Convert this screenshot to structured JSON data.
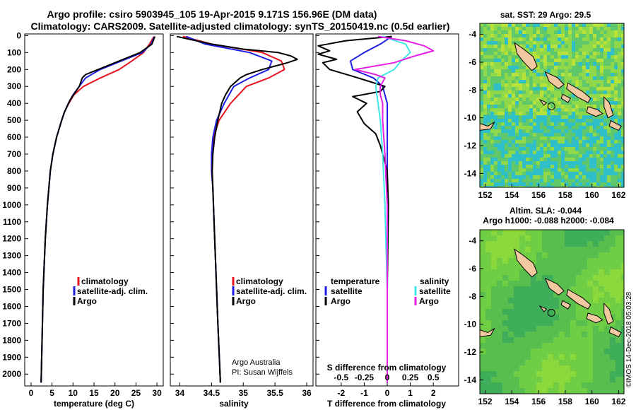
{
  "header": {
    "line1": "Argo profile: csiro 5903945_105 19-Apr-2015 9.171S 156.96E (DM data)",
    "line2": "Climatology: CARS2009. Satellite-adjusted climatology: synTS_20150419.nc (0.5d earlier)"
  },
  "credit": {
    "line1": "Argo Australia",
    "line2": "PI: Susan Wijffels",
    "imos": "©IMOS 14-Dec-2018 05:03:28"
  },
  "colors": {
    "climatology": "#e8141e",
    "satellite": "#1e1ee6",
    "argo": "#000000",
    "sal_sat": "#3fe6e6",
    "sal_argo": "#e61ee6",
    "land": "#f2c8a0"
  },
  "depth_axis": {
    "ticks": [
      0,
      100,
      200,
      300,
      400,
      500,
      600,
      700,
      800,
      900,
      1000,
      1100,
      1200,
      1300,
      1400,
      1500,
      1600,
      1700,
      1800,
      1900,
      2000
    ],
    "range": [
      -10,
      2070
    ]
  },
  "chart_data": [
    {
      "type": "line",
      "id": "temperature",
      "xlabel": "temperature (deg C)",
      "xlim": [
        -1.5,
        31.5
      ],
      "xticks": [
        0,
        5,
        10,
        15,
        20,
        25,
        30
      ],
      "legend": [
        "climatology",
        "satellite-adj. clim.",
        "Argo"
      ],
      "series": [
        {
          "name": "climatology",
          "depth": [
            5,
            50,
            100,
            150,
            200,
            250,
            300,
            350,
            400,
            450,
            500,
            600,
            700,
            800,
            1000,
            1200,
            1500,
            2050
          ],
          "values": [
            29.3,
            28.2,
            26.8,
            24.0,
            21.0,
            16.5,
            12.5,
            10.2,
            9.0,
            8.0,
            7.3,
            6.1,
            5.2,
            4.6,
            3.9,
            3.4,
            2.9,
            2.4
          ]
        },
        {
          "name": "satellite-adj. clim.",
          "depth": [
            5,
            50,
            100,
            150,
            200,
            250,
            300,
            350,
            400,
            450,
            500,
            600,
            700,
            800,
            1000,
            1200,
            1500,
            2050
          ],
          "values": [
            29.4,
            28.6,
            26.5,
            21.5,
            16.5,
            13.0,
            11.5,
            10.0,
            8.9,
            8.0,
            7.3,
            6.1,
            5.2,
            4.6,
            3.9,
            3.4,
            2.9,
            2.4
          ]
        },
        {
          "name": "Argo",
          "depth": [
            5,
            50,
            100,
            150,
            200,
            230,
            250,
            300,
            340,
            380,
            450,
            500,
            600,
            700,
            800,
            1000,
            1200,
            1500,
            2050
          ],
          "values": [
            29.5,
            28.8,
            26.0,
            21.0,
            16.0,
            13.0,
            12.2,
            11.5,
            10.4,
            9.3,
            8.0,
            7.3,
            6.1,
            5.2,
            4.6,
            3.9,
            3.4,
            2.9,
            2.4
          ]
        }
      ]
    },
    {
      "type": "line",
      "id": "salinity",
      "xlabel": "salinity",
      "xlim": [
        33.85,
        36.1
      ],
      "xticks": [
        34,
        34.5,
        35,
        35.5,
        36
      ],
      "legend": [
        "climatology",
        "satellite-adj. clim.",
        "Argo"
      ],
      "series": [
        {
          "name": "climatology",
          "depth": [
            5,
            50,
            100,
            150,
            200,
            250,
            300,
            400,
            500,
            600,
            700,
            800,
            900,
            1100,
            1400,
            1700,
            2050
          ],
          "values": [
            34.05,
            34.5,
            35.3,
            35.6,
            35.65,
            35.4,
            35.05,
            34.8,
            34.62,
            34.53,
            34.5,
            34.5,
            34.52,
            34.54,
            34.57,
            34.6,
            34.64
          ]
        },
        {
          "name": "satellite-adj. clim.",
          "depth": [
            5,
            50,
            100,
            150,
            200,
            250,
            300,
            400,
            500,
            600,
            700,
            800,
            900,
            1100,
            1400,
            1700,
            2050
          ],
          "values": [
            34.1,
            34.4,
            35.1,
            35.45,
            35.4,
            35.1,
            34.85,
            34.7,
            34.58,
            34.52,
            34.5,
            34.5,
            34.52,
            34.54,
            34.57,
            34.6,
            34.64
          ]
        },
        {
          "name": "Argo",
          "depth": [
            5,
            50,
            80,
            100,
            120,
            140,
            160,
            180,
            200,
            230,
            250,
            300,
            350,
            400,
            500,
            600,
            700,
            800,
            900,
            1100,
            1400,
            1700,
            2050
          ],
          "values": [
            33.95,
            34.5,
            35.0,
            35.55,
            35.75,
            35.85,
            35.7,
            35.5,
            35.3,
            35.05,
            34.95,
            34.8,
            34.72,
            34.66,
            34.6,
            34.55,
            34.52,
            34.51,
            34.52,
            34.54,
            34.57,
            34.6,
            34.64
          ]
        }
      ]
    },
    {
      "type": "line",
      "id": "difference",
      "xlabel": "T difference from climatology",
      "xlabel2": "S difference from climatology",
      "xlim": [
        -3.1,
        3.1
      ],
      "xticks": [
        -2,
        -1,
        0,
        1,
        2
      ],
      "xticks2": [
        "-0.5",
        "-0.25",
        "0",
        "0.25",
        "0.5"
      ],
      "xticks2_pos": [
        -2,
        -1,
        0,
        1,
        2
      ],
      "legend_left_title": "temperature",
      "legend_right_title": "salinity",
      "legend_left": [
        "satellite",
        "Argo"
      ],
      "legend_right": [
        "satellite",
        "Argo"
      ],
      "series": [
        {
          "name": "temperature satellite",
          "depth": [
            5,
            50,
            100,
            150,
            200,
            250,
            300,
            350,
            400,
            500,
            700,
            1000,
            1500,
            2050
          ],
          "values": [
            0.2,
            -0.3,
            -1.0,
            -1.6,
            -1.5,
            -0.6,
            -0.2,
            -0.1,
            0.0,
            0.0,
            0.0,
            0.0,
            0.0,
            0.0
          ]
        },
        {
          "name": "temperature Argo",
          "depth": [
            5,
            30,
            60,
            90,
            110,
            140,
            160,
            200,
            240,
            270,
            300,
            330,
            360,
            400,
            450,
            520,
            580,
            650,
            700,
            800,
            1000,
            1500,
            2050
          ],
          "values": [
            0.2,
            -1.8,
            -3.0,
            -2.5,
            -3.0,
            -2.2,
            -2.8,
            -2.5,
            -1.5,
            -0.8,
            -0.1,
            -0.3,
            -1.5,
            -0.9,
            -1.3,
            -1.0,
            -0.5,
            -0.3,
            -0.2,
            0.0,
            0.05,
            0.0,
            0.0
          ]
        },
        {
          "name": "salinity satellite",
          "depth": [
            5,
            50,
            100,
            150,
            200,
            250,
            300,
            400,
            500,
            700,
            1000,
            1500,
            2050
          ],
          "values": [
            -0.2,
            0.8,
            1.0,
            0.6,
            0.3,
            -0.4,
            -0.5,
            -0.4,
            -0.3,
            -0.2,
            -0.1,
            0.0,
            0.0
          ]
        },
        {
          "name": "salinity Argo",
          "depth": [
            5,
            30,
            60,
            90,
            120,
            160,
            200,
            230,
            250,
            300,
            350,
            400,
            500,
            700,
            1000,
            1500,
            2050
          ],
          "values": [
            -0.4,
            0.8,
            1.6,
            2.0,
            1.2,
            0.3,
            -1.4,
            -0.5,
            -0.1,
            -0.3,
            -0.3,
            -0.2,
            -0.2,
            -0.1,
            0.0,
            0.0,
            0.0
          ]
        }
      ]
    },
    {
      "type": "heatmap",
      "id": "sst_map",
      "title": "sat. SST: 29 Argo: 29.5",
      "xticks": [
        "152",
        "154",
        "156",
        "158",
        "160",
        "162"
      ],
      "yticks": [
        "-4",
        "-6",
        "-8",
        "-10",
        "-12",
        "-14"
      ],
      "lon_range": [
        151.6,
        162.4
      ],
      "lat_range": [
        -3.2,
        -15.0
      ],
      "profile_lon": 156.96,
      "profile_lat": -9.171
    },
    {
      "type": "heatmap",
      "id": "sla_map",
      "title": "Altim. SLA: -0.044",
      "subtitle": "Argo h1000: -0.088 h2000: -0.084",
      "xticks": [
        "152",
        "154",
        "156",
        "158",
        "160",
        "162"
      ],
      "yticks": [
        "-4",
        "-6",
        "-8",
        "-10",
        "-12",
        "-14"
      ],
      "lon_range": [
        151.6,
        162.4
      ],
      "lat_range": [
        -3.2,
        -15.0
      ],
      "profile_lon": 156.96,
      "profile_lat": -9.171
    }
  ]
}
